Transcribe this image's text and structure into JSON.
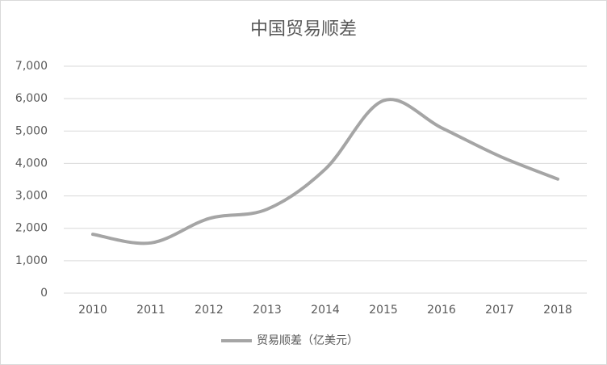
{
  "chart_data": {
    "type": "line",
    "title": "中国贸易顺差",
    "categories": [
      "2010",
      "2011",
      "2012",
      "2013",
      "2014",
      "2015",
      "2016",
      "2017",
      "2018"
    ],
    "series": [
      {
        "name": "贸易顺差（亿美元）",
        "color": "#a5a5a5",
        "values": [
          1815,
          1549,
          2303,
          2590,
          3825,
          5939,
          5100,
          4225,
          3518
        ]
      }
    ],
    "ylim": [
      0,
      7000
    ],
    "yticks": [
      0,
      {
        "value": 1000,
        "label": "1,000"
      },
      {
        "value": 2000,
        "label": "2,000"
      },
      {
        "value": 3000,
        "label": "3,000"
      },
      {
        "value": 4000,
        "label": "4,000"
      },
      {
        "value": 5000,
        "label": "5,000"
      },
      {
        "value": 6000,
        "label": "6,000"
      },
      {
        "value": 7000,
        "label": "7,000"
      }
    ],
    "grid": true,
    "smooth": true,
    "legend": "bottom"
  }
}
